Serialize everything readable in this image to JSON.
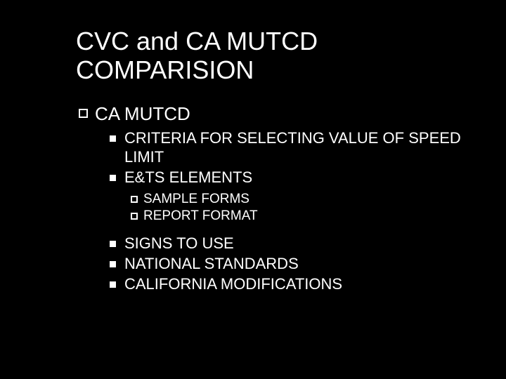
{
  "slide": {
    "title": "CVC and CA MUTCD COMPARISION",
    "level1": {
      "label": "CA MUTCD"
    },
    "level2_group1": [
      "CRITERIA FOR SELECTING VALUE OF SPEED LIMIT",
      "E&TS ELEMENTS"
    ],
    "level3": [
      "SAMPLE FORMS",
      "REPORT FORMAT"
    ],
    "level2_group2": [
      "SIGNS TO USE",
      "NATIONAL STANDARDS",
      "CALIFORNIA MODIFICATIONS"
    ],
    "colors": {
      "background": "#000000",
      "text": "#ffffff",
      "bullet": "#ffffff"
    },
    "typography": {
      "title_fontsize": 36,
      "level1_fontsize": 26,
      "level2_fontsize": 22,
      "level3_fontsize": 19,
      "font_family": "Arial"
    },
    "bullets": {
      "level1": "square-outline-13px",
      "level2": "square-filled-9px",
      "level3": "square-outline-10px"
    }
  }
}
